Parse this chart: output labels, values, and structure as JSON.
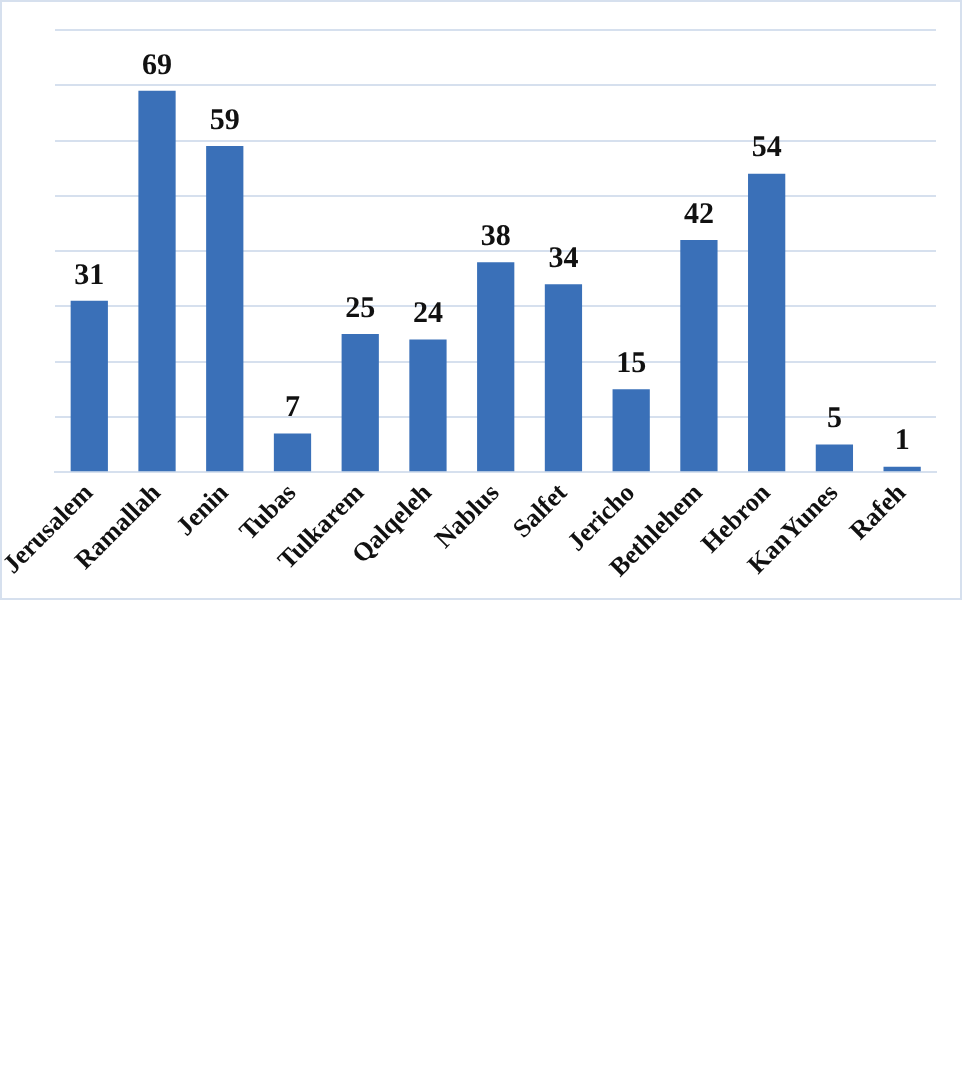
{
  "chart_data": {
    "type": "bar",
    "categories": [
      "Jerusalem",
      "Ramallah",
      "Jenin",
      "Tubas",
      "Tulkarem",
      "Qalqeleh",
      "Nablus",
      "Salfet",
      "Jericho",
      "Bethlehem",
      "Hebron",
      "KanYunes",
      "Rafeh"
    ],
    "values": [
      31,
      69,
      59,
      7,
      25,
      24,
      38,
      34,
      15,
      42,
      54,
      5,
      1
    ],
    "color": "#3a70b8",
    "ylim": [
      0,
      80
    ],
    "yticks": [
      {
        "value": 0,
        "label": null
      },
      {
        "value": 10,
        "label": null
      },
      {
        "value": 20,
        "label": null
      },
      {
        "value": 30,
        "label": null
      },
      {
        "value": 40,
        "label": null
      },
      {
        "value": 50,
        "label": null
      },
      {
        "value": 60,
        "label": null
      },
      {
        "value": 70,
        "label": null
      },
      {
        "value": 80,
        "label": null
      }
    ],
    "grid": "y",
    "tick_labels": "x",
    "data_labels": true,
    "legend": false
  }
}
